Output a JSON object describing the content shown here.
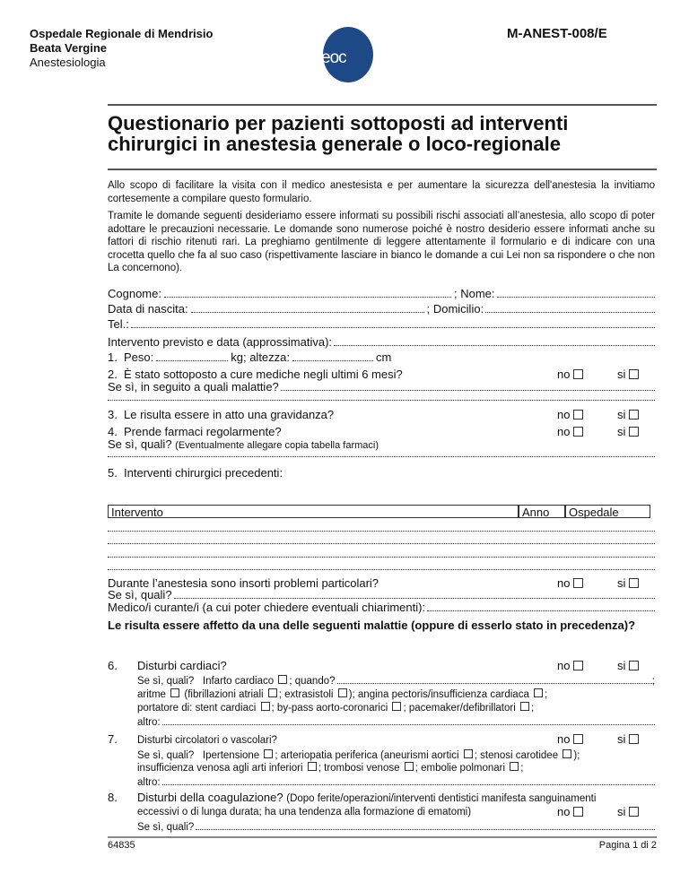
{
  "header": {
    "hospital": "Ospedale Regionale di Mendrisio",
    "hospital_sub": "Beata Vergine",
    "department": "Anestesiologia",
    "logo_text": "eoc",
    "logo_color": "#1d4a86",
    "doc_code": "M-ANEST-008/E"
  },
  "title_line1": "Questionario per pazienti sottoposti ad interventi",
  "title_line2": "chirurgici in anestesia generale o loco-regionale",
  "intro_1": "Allo scopo di facilitare la visita con il medico anestesista e per aumentare la sicurezza dell'anestesia la invitiamo cortesemente a compilare questo formulario.",
  "intro_2": "Tramite le domande seguenti desideriamo essere informati su possibili rischi associati all’anestesia, allo scopo di poter adottare le precauzioni necessarie. Le domande sono numerose poiché è nostro desiderio essere informati anche su fattori di rischio ritenuti rari. La preghiamo gentilmente di leggere attentamente il formulario e di indicare con una crocetta quello che fa al suo caso (rispettivamente lasciare in bianco le domande a cui Lei non sa rispondere o che non La concernono).",
  "fields": {
    "cognome": "Cognome:",
    "nome": "; Nome:",
    "data_nascita": "Data di nascita:",
    "domicilio": "; Domicilio:",
    "tel": "Tel.:",
    "intervento_previsto": "Intervento previsto e data (approssimativa):"
  },
  "options": {
    "no": "no",
    "si": "si"
  },
  "q1": {
    "num": "1.",
    "peso": "Peso:",
    "kg": "kg; altezza:",
    "cm": "cm"
  },
  "q2": {
    "num": "2.",
    "text": "È stato sottoposto a cure mediche negli ultimi 6 mesi?",
    "followup": "Se sì, in seguito a quali malattie?"
  },
  "q3": {
    "num": "3.",
    "text": "Le risulta essere in atto una gravidanza?"
  },
  "q4": {
    "num": "4.",
    "text": "Prende farmaci regolarmente?",
    "followup": "Se sì, quali?",
    "note": "(Eventualmente allegare copia tabella farmaci)"
  },
  "q5": {
    "num": "5.",
    "text": "Interventi chirurgici precedenti:",
    "columns": [
      "Intervento",
      "Anno",
      "Ospedale"
    ],
    "problems": "Durante l’anestesia sono insorti problemi particolari?",
    "followup": "Se sì, quali?"
  },
  "medico": "Medico/i curante/i (a cui poter chiedere eventuali chiarimenti):",
  "diseases_heading": "Le risulta essere affetto da una delle seguenti malattie (oppure di esserlo stato in precedenza)?",
  "q6": {
    "num": "6.",
    "text": "Disturbi cardiaci?",
    "l1a": "Se sì, quali?",
    "l1b": "Infarto cardiaco",
    "l1c": "; quando?",
    "aritme": "aritme",
    "fib": "(fibrillazioni atriali",
    "extra": "; extrasistoli",
    "angina": "); angina pectoris/insufficienza cardiaca",
    "portatore": "portatore di: stent cardiaci",
    "bypass": "; by-pass aorto-coronarici",
    "pace": "; pacemaker/defibrillatori",
    "altro": "altro:"
  },
  "q7": {
    "num": "7.",
    "text": "Disturbi circolatori o vascolari?",
    "l1a": "Se sì, quali?",
    "iper": "Ipertensione",
    "arter": "; arteriopatia periferica (aneurismi aortici",
    "steno": "; stenosi carotidee",
    "insuff": "insufficienza venosa agli arti inferiori",
    "tromb": "; trombosi venose",
    "embol": "; embolie polmonari",
    "altro": "altro:"
  },
  "q8": {
    "num": "8.",
    "text": "Disturbi della coagulazione?",
    "note1": "(Dopo ferite/operazioni/interventi dentistici manifesta sanguinamenti",
    "note2": "eccessivi o di lunga durata; ha una tendenza alla formazione di ematomi)",
    "followup": "Se sì, quali?"
  },
  "footer": {
    "code": "64835",
    "page": "Pagina 1 di 2"
  }
}
